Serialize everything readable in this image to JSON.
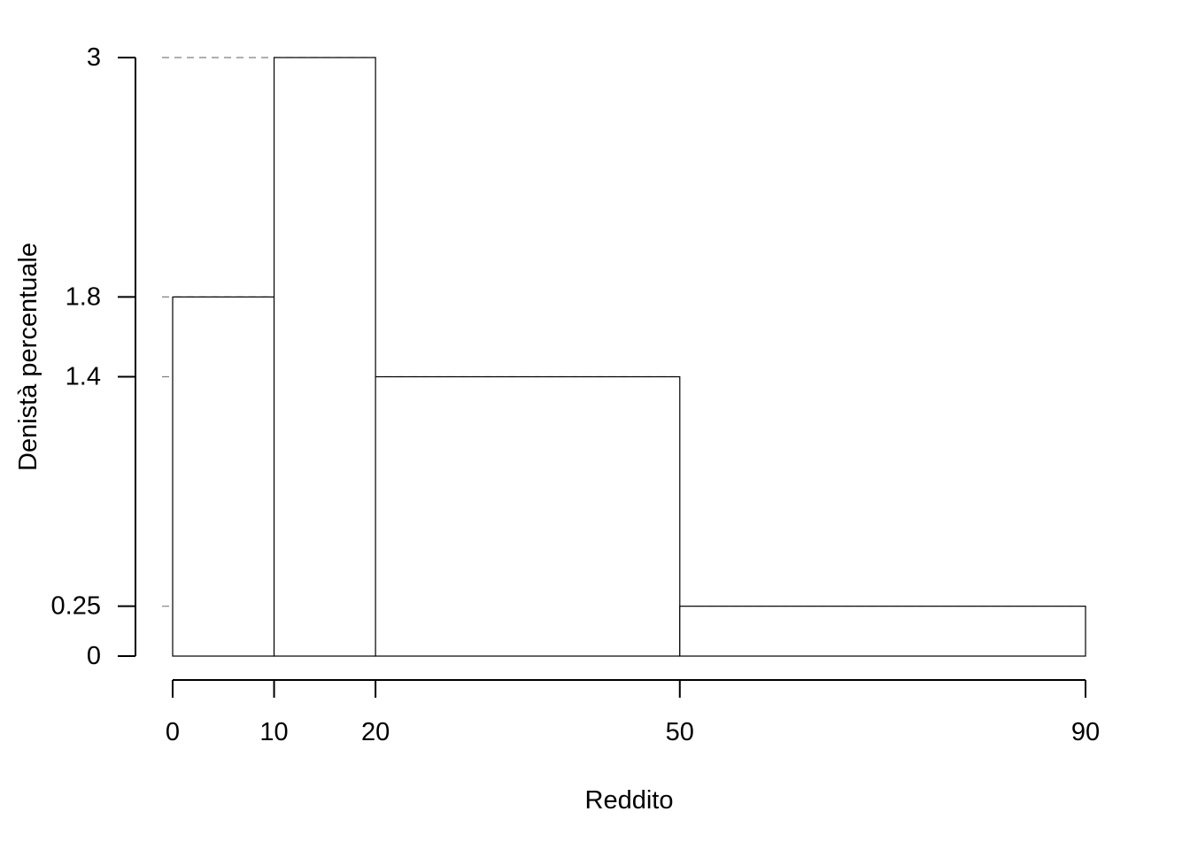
{
  "chart_data": {
    "type": "bar",
    "subtype": "histogram",
    "title": "",
    "xlabel": "Reddito",
    "ylabel": "Denistà percentuale",
    "bins": [
      {
        "from": 0,
        "to": 10,
        "density": 1.8
      },
      {
        "from": 10,
        "to": 20,
        "density": 3
      },
      {
        "from": 20,
        "to": 50,
        "density": 1.4
      },
      {
        "from": 50,
        "to": 90,
        "density": 0.25
      }
    ],
    "xlim": [
      0,
      90
    ],
    "ylim": [
      0,
      3
    ],
    "x_ticks": [
      {
        "value": 0,
        "label": "0"
      },
      {
        "value": 10,
        "label": "10"
      },
      {
        "value": 20,
        "label": "20"
      },
      {
        "value": 50,
        "label": "50"
      },
      {
        "value": 90,
        "label": "90"
      }
    ],
    "y_ticks": [
      {
        "value": 0,
        "label": "0"
      },
      {
        "value": 0.25,
        "label": "0.25"
      },
      {
        "value": 1.4,
        "label": "1.4"
      },
      {
        "value": 1.8,
        "label": "1.8"
      },
      {
        "value": 3,
        "label": "3"
      }
    ],
    "reference_lines": [
      0.25,
      1.4,
      1.8,
      3
    ],
    "grid": false,
    "legend": "none",
    "colors": {
      "bar_fill": "#ffffff",
      "bar_stroke": "#000000",
      "reference_line": "#7f7f7f"
    }
  }
}
